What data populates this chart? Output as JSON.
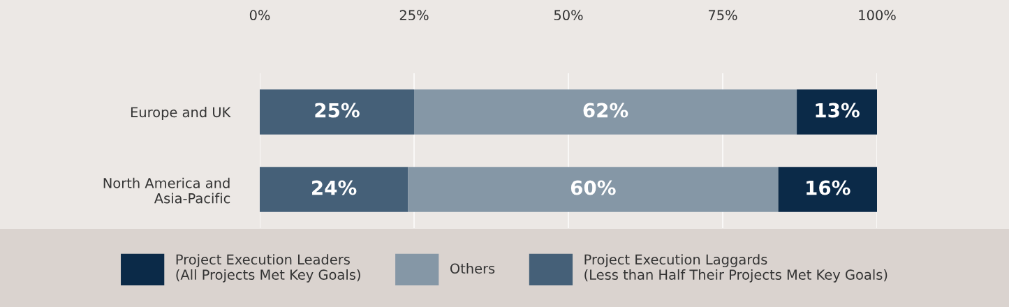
{
  "chart_data": {
    "type": "bar",
    "orientation": "horizontal",
    "stacked": true,
    "categories": [
      "Europe and UK",
      "North America and Asia-Pacific"
    ],
    "series": [
      {
        "name": "Project Execution Laggards\n(Less than Half Their Projects Met Key Goals)",
        "color": "#456078",
        "values": [
          25,
          24
        ],
        "value_labels": [
          "25%",
          "24%"
        ]
      },
      {
        "name": "Others",
        "color": "#8597a6",
        "values": [
          62,
          60
        ],
        "value_labels": [
          "62%",
          "60%"
        ]
      },
      {
        "name": "Project Execution Leaders\n(All Projects Met Key Goals)",
        "color": "#0b2a48",
        "values": [
          13,
          16
        ],
        "value_labels": [
          "13%",
          "16%"
        ]
      }
    ],
    "xlim": [
      0,
      100
    ],
    "xticks": [
      {
        "value": 0,
        "label": "0%"
      },
      {
        "value": 25,
        "label": "25%"
      },
      {
        "value": 50,
        "label": "50%"
      },
      {
        "value": 75,
        "label": "75%"
      },
      {
        "value": 100,
        "label": "100%"
      }
    ],
    "grid": "x",
    "legend": "bottom"
  }
}
